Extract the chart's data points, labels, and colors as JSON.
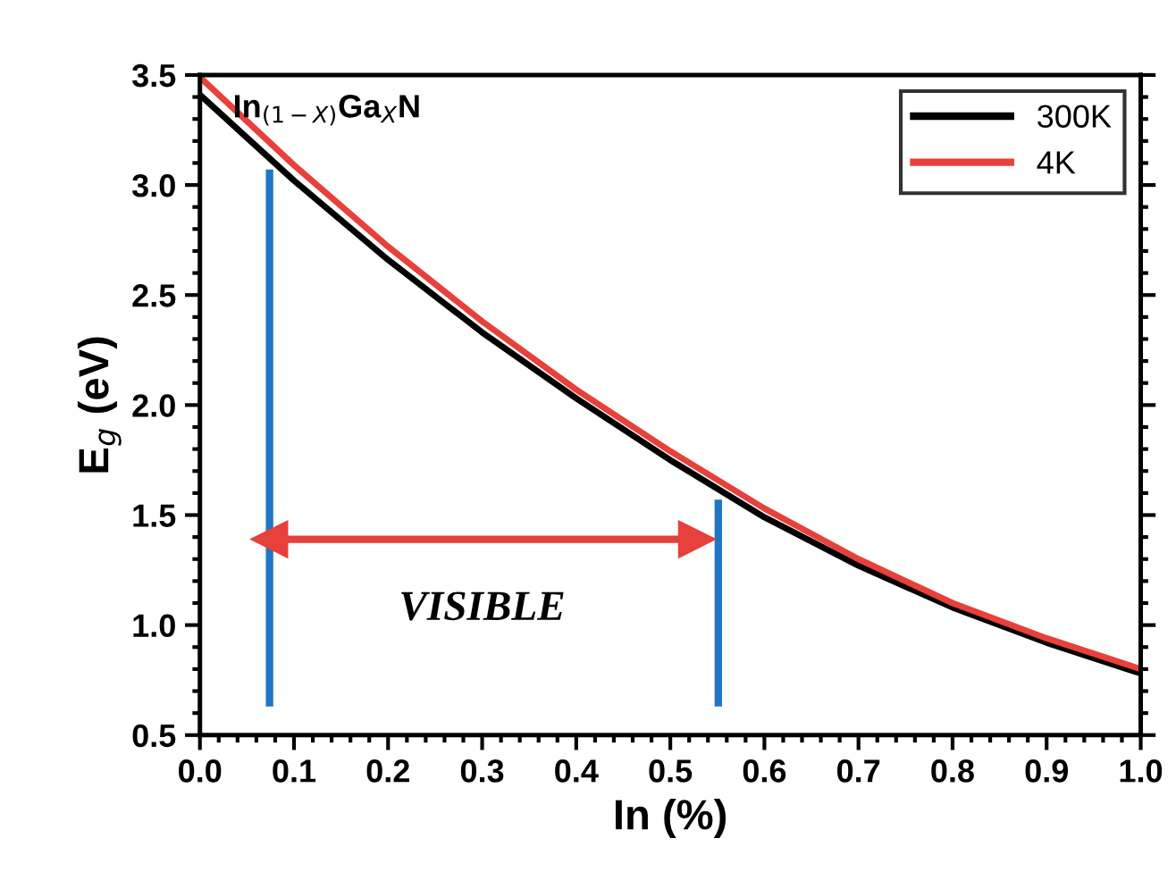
{
  "chart_data": {
    "type": "line",
    "xlabel": "In (%)",
    "ylabel": "E$_{g}$ (eV)",
    "x": [
      0,
      0.1,
      0.2,
      0.3,
      0.4,
      0.5,
      0.6,
      0.7,
      0.8,
      0.9,
      1.0
    ],
    "series": [
      {
        "name": "300K",
        "color": "#000000",
        "values": [
          3.41,
          3.02,
          2.66,
          2.33,
          2.03,
          1.75,
          1.49,
          1.27,
          1.08,
          0.92,
          0.78
        ]
      },
      {
        "name": "4K",
        "color": "#e8403a",
        "values": [
          3.49,
          3.09,
          2.72,
          2.38,
          2.07,
          1.79,
          1.53,
          1.3,
          1.1,
          0.94,
          0.8
        ]
      },
      {
        "color": "#1f77c4",
        "x": [
          0.074,
          0.074
        ],
        "values": [
          0.63,
          3.07
        ]
      },
      {
        "color": "#1f77c4",
        "x": [
          0.551,
          0.551
        ],
        "values": [
          0.63,
          1.57
        ]
      },
      {
        "color": "#e8403a",
        "x": [
          0.074,
          0.528
        ],
        "values": [
          1.39,
          1.39
        ],
        "marker": "triangle"
      }
    ],
    "annotations": [
      "In$_{(1−X)}$Ga$_{X}$N",
      "VISIBLE"
    ],
    "xlim": [
      0,
      1.0
    ],
    "ylim": [
      0.5,
      3.5
    ],
    "xticks": [
      {
        "value": 0,
        "label": "0.0"
      },
      0.1,
      0.2,
      0.3,
      0.4,
      0.5,
      0.6,
      0.7,
      0.8,
      0.9,
      {
        "value": 1,
        "label": "1.0"
      }
    ],
    "yticks": [
      0.5,
      {
        "value": 1,
        "label": "1.0"
      },
      1.5,
      {
        "value": 2,
        "label": "2.0"
      },
      2.5,
      {
        "value": 3,
        "label": "3.0"
      },
      3.5
    ],
    "legend": "top right",
    "grid": false
  }
}
